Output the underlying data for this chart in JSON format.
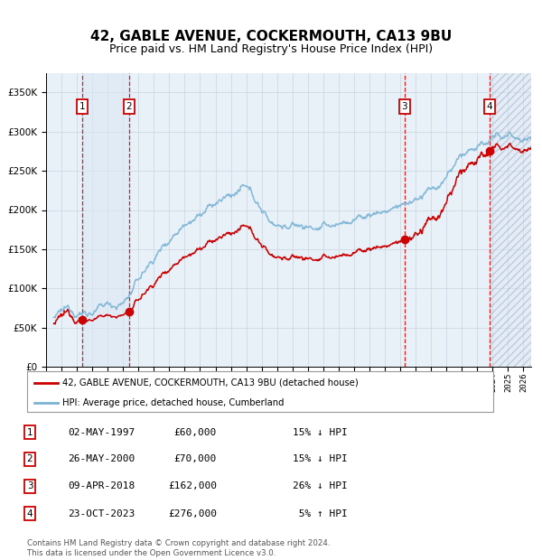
{
  "title": "42, GABLE AVENUE, COCKERMOUTH, CA13 9BU",
  "subtitle": "Price paid vs. HM Land Registry's House Price Index (HPI)",
  "legend_label_red": "42, GABLE AVENUE, COCKERMOUTH, CA13 9BU (detached house)",
  "legend_label_blue": "HPI: Average price, detached house, Cumberland",
  "footer": "Contains HM Land Registry data © Crown copyright and database right 2024.\nThis data is licensed under the Open Government Licence v3.0.",
  "table_rows": [
    {
      "num": 1,
      "date": "02-MAY-1997",
      "price": "£60,000",
      "pct": "15% ↓ HPI"
    },
    {
      "num": 2,
      "date": "26-MAY-2000",
      "price": "£70,000",
      "pct": "15% ↓ HPI"
    },
    {
      "num": 3,
      "date": "09-APR-2018",
      "price": "£162,000",
      "pct": "26% ↓ HPI"
    },
    {
      "num": 4,
      "date": "23-OCT-2023",
      "price": "£276,000",
      "pct": " 5% ↑ HPI"
    }
  ],
  "sale_times": [
    1997.34,
    2000.4,
    2018.27,
    2023.81
  ],
  "sale_prices": [
    60000,
    70000,
    162000,
    276000
  ],
  "ylim": [
    0,
    375000
  ],
  "yticks": [
    0,
    50000,
    100000,
    150000,
    200000,
    250000,
    300000,
    350000
  ],
  "xlim_start": 1995.5,
  "xlim_end": 2026.5,
  "hpi_color": "#7ab3d4",
  "sale_color": "#cc0000",
  "vline_color": "#cc0000",
  "shade_color": "#dbe8f5",
  "grid_color": "#c8d4e0",
  "bg_color": "#e8f0f8",
  "title_fontsize": 11,
  "subtitle_fontsize": 9
}
